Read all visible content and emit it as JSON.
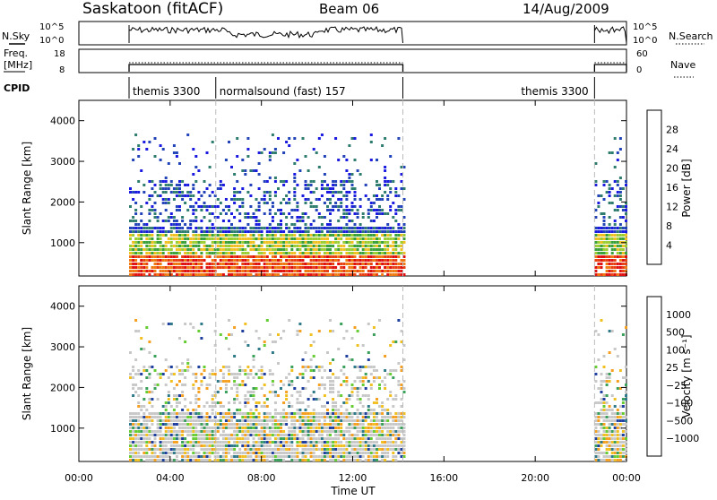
{
  "header": {
    "title": "Saskatoon (fitACF)",
    "beam": "Beam 06",
    "date": "14/Aug/2009"
  },
  "strips": {
    "nsky_label": "N.Sky",
    "nsearch_label": "N.Search",
    "freq_label_line1": "Freq.",
    "freq_label_line2": "[MHz]",
    "nave_label": "Nave",
    "cpid_label": "CPID",
    "noise_ticks": [
      "10^5",
      "10^0"
    ],
    "noise_ticks_right": [
      "10^5",
      "10^0"
    ],
    "freq_ticks": [
      "18",
      "8"
    ],
    "nave_ticks": [
      "60",
      "0"
    ],
    "cpid_segments": [
      {
        "label": "themis 3300",
        "start_h": 2.2,
        "end_h": 6.0
      },
      {
        "label": "normalsound (fast) 157",
        "start_h": 6.0,
        "end_h": 14.2
      },
      {
        "label": "themis 3300",
        "start_h": 22.6,
        "end_h": 24.0
      }
    ]
  },
  "panels": {
    "ylabel": "Slant Range [km]",
    "xlabel": "Time UT",
    "power_colorbar_label": "Power [dB]",
    "velocity_colorbar_label": "Velocity [m s⁻¹]"
  },
  "chart_data": {
    "type": "heatmap",
    "x_ticks": [
      "00:00",
      "04:00",
      "08:00",
      "12:00",
      "16:00",
      "20:00",
      "00:00"
    ],
    "x_range_hours": [
      0,
      24
    ],
    "y_ticks": [
      "1000",
      "2000",
      "3000",
      "4000"
    ],
    "y_range_km": [
      180,
      4500
    ],
    "mode_change_hours": [
      6.0,
      14.2,
      22.6
    ],
    "operating_intervals_hours": [
      [
        2.2,
        14.2
      ],
      [
        22.6,
        24.0
      ]
    ],
    "power_scale": {
      "labels": [
        "4",
        "8",
        "12",
        "16",
        "20",
        "24",
        "28"
      ],
      "colors": [
        "#1a1ae0",
        "#2244b8",
        "#2e7d6e",
        "#3aa03a",
        "#9acd32",
        "#f0c020",
        "#f5a020",
        "#f07810",
        "#e84010",
        "#e01010"
      ]
    },
    "velocity_scale": {
      "labels": [
        "1000",
        "500",
        "100",
        "25",
        "−25",
        "−100",
        "−500",
        "−1000"
      ],
      "colors": [
        "#1f3fa0",
        "#2f7a8a",
        "#3aa05a",
        "#66cc33",
        "#c8c8c8",
        "#c8c8c8",
        "#f0c020",
        "#f5a020",
        "#f07810",
        "#e84010",
        "#e01010"
      ]
    }
  }
}
